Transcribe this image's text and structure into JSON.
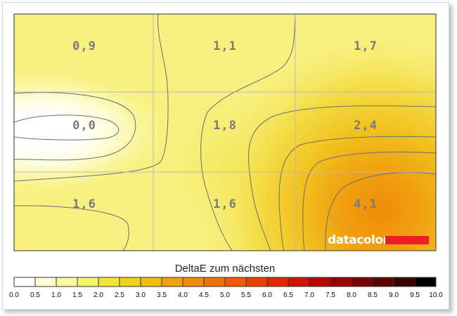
{
  "chart_data": {
    "type": "heatmap",
    "rows": 3,
    "cols": 3,
    "cells": [
      [
        "0,9",
        "1,1",
        "1,7"
      ],
      [
        "0,0",
        "1,8",
        "2,4"
      ],
      [
        "1,6",
        "1,6",
        "4,1"
      ]
    ],
    "values": [
      [
        0.9,
        1.1,
        1.7
      ],
      [
        0.0,
        1.8,
        2.4
      ],
      [
        1.6,
        1.6,
        4.1
      ]
    ],
    "grid": true,
    "legend": {
      "title": "DeltaE zum nächsten",
      "min": 0,
      "max": 10,
      "ticks": [
        "0.0",
        "0.5",
        "1.0",
        "1.5",
        "2.0",
        "2.5",
        "3.0",
        "3.5",
        "4.0",
        "4.5",
        "5.0",
        "5.5",
        "6.0",
        "6.5",
        "7.0",
        "7.5",
        "8.0",
        "8.5",
        "9.0",
        "9.5",
        "10.0"
      ],
      "colors": [
        "#ffffff",
        "#ffffd2",
        "#fcfca0",
        "#f7f468",
        "#f0e53a",
        "#edd21e",
        "#efbb14",
        "#f0a20c",
        "#f08a08",
        "#ef7206",
        "#ef5a04",
        "#e84202",
        "#dc2a02",
        "#cc1402",
        "#b40602",
        "#9a0000",
        "#7c0000",
        "#5c0000",
        "#3a0000",
        "#000000"
      ],
      "placement": "bottom"
    },
    "brand": {
      "text": "datacolor",
      "bar_color": "#ee1c24"
    }
  }
}
